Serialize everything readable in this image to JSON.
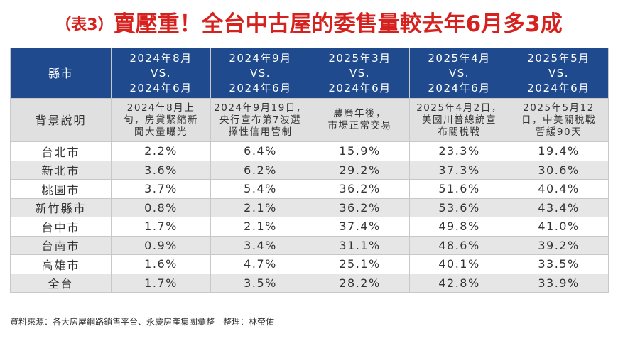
{
  "title": {
    "tag": "（表3）",
    "main": "賣壓重！全台中古屋的委售量較去年6月多3成"
  },
  "table": {
    "columns": [
      {
        "label": "縣市"
      },
      {
        "lines": [
          "2024年8月",
          "VS.",
          "2024年6月"
        ]
      },
      {
        "lines": [
          "2024年9月",
          "VS.",
          "2024年6月"
        ]
      },
      {
        "lines": [
          "2025年3月",
          "VS.",
          "2024年6月"
        ]
      },
      {
        "lines": [
          "2025年4月",
          "VS.",
          "2024年6月"
        ]
      },
      {
        "lines": [
          "2025年5月",
          "VS.",
          "2024年6月"
        ]
      }
    ],
    "description_row": {
      "label": "背景說明",
      "cells": [
        [
          "2024年8月上",
          "旬，房貸緊縮新",
          "聞大量曝光"
        ],
        [
          "2024年9月19日，",
          "央行宣布第7波選",
          "擇性信用管制"
        ],
        [
          "農曆年後，",
          "市場正常交易"
        ],
        [
          "2025年4月2日，",
          "美國川普總統宣",
          "布關稅戰"
        ],
        [
          "2025年5月12",
          "日，中美關稅戰",
          "暫緩90天"
        ]
      ]
    },
    "rows": [
      {
        "city": "台北市",
        "values": [
          "2.2%",
          "6.4%",
          "15.9%",
          "23.3%",
          "19.4%"
        ]
      },
      {
        "city": "新北市",
        "values": [
          "3.6%",
          "6.2%",
          "29.2%",
          "37.3%",
          "30.6%"
        ]
      },
      {
        "city": "桃園市",
        "values": [
          "3.7%",
          "5.4%",
          "36.2%",
          "51.6%",
          "40.4%"
        ]
      },
      {
        "city": "新竹縣市",
        "values": [
          "0.8%",
          "2.1%",
          "36.2%",
          "53.6%",
          "43.4%"
        ]
      },
      {
        "city": "台中市",
        "values": [
          "1.7%",
          "2.1%",
          "37.4%",
          "49.8%",
          "41.0%"
        ]
      },
      {
        "city": "台南市",
        "values": [
          "0.9%",
          "3.4%",
          "31.1%",
          "48.6%",
          "39.2%"
        ]
      },
      {
        "city": "高雄市",
        "values": [
          "1.6%",
          "4.7%",
          "25.1%",
          "40.1%",
          "33.5%"
        ]
      },
      {
        "city": "全台",
        "values": [
          "1.7%",
          "3.5%",
          "28.2%",
          "42.8%",
          "33.9%"
        ]
      }
    ]
  },
  "source": "資料來源：各大房屋網路銷售平台、永慶房產集團彙整　整理：林帝佑",
  "colors": {
    "title_red": "#d6221f",
    "header_blue": "#1f4b8e",
    "stripe_gray": "#e6e6e6"
  }
}
